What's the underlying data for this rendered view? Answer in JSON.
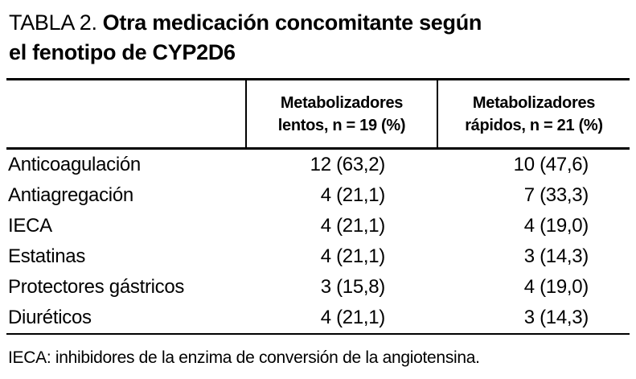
{
  "title": {
    "prefix": "TABLA 2.",
    "caption_line1": "Otra medicación concomitante según",
    "caption_line2": "el fenotipo de CYP2D6"
  },
  "table": {
    "columns": [
      {
        "line1": "Metabolizadores",
        "line2": "lentos, n = 19 (%)"
      },
      {
        "line1": "Metabolizadores",
        "line2": "rápidos, n = 21 (%)"
      }
    ],
    "rows": [
      {
        "label": "Anticoagulación",
        "lentos": "12 (63,2)",
        "rapidos": "10 (47,6)"
      },
      {
        "label": "Antiagregación",
        "lentos": "4 (21,1)",
        "rapidos": "7 (33,3)"
      },
      {
        "label": "IECA",
        "lentos": "4 (21,1)",
        "rapidos": "4 (19,0)"
      },
      {
        "label": "Estatinas",
        "lentos": "4 (21,1)",
        "rapidos": "3 (14,3)"
      },
      {
        "label": "Protectores gástricos",
        "lentos": "3 (15,8)",
        "rapidos": "4 (19,0)"
      },
      {
        "label": "Diuréticos",
        "lentos": "4 (21,1)",
        "rapidos": "3 (14,3)"
      }
    ]
  },
  "footnote": "IECA: inhibidores de la enzima de conversión de la angiotensina."
}
